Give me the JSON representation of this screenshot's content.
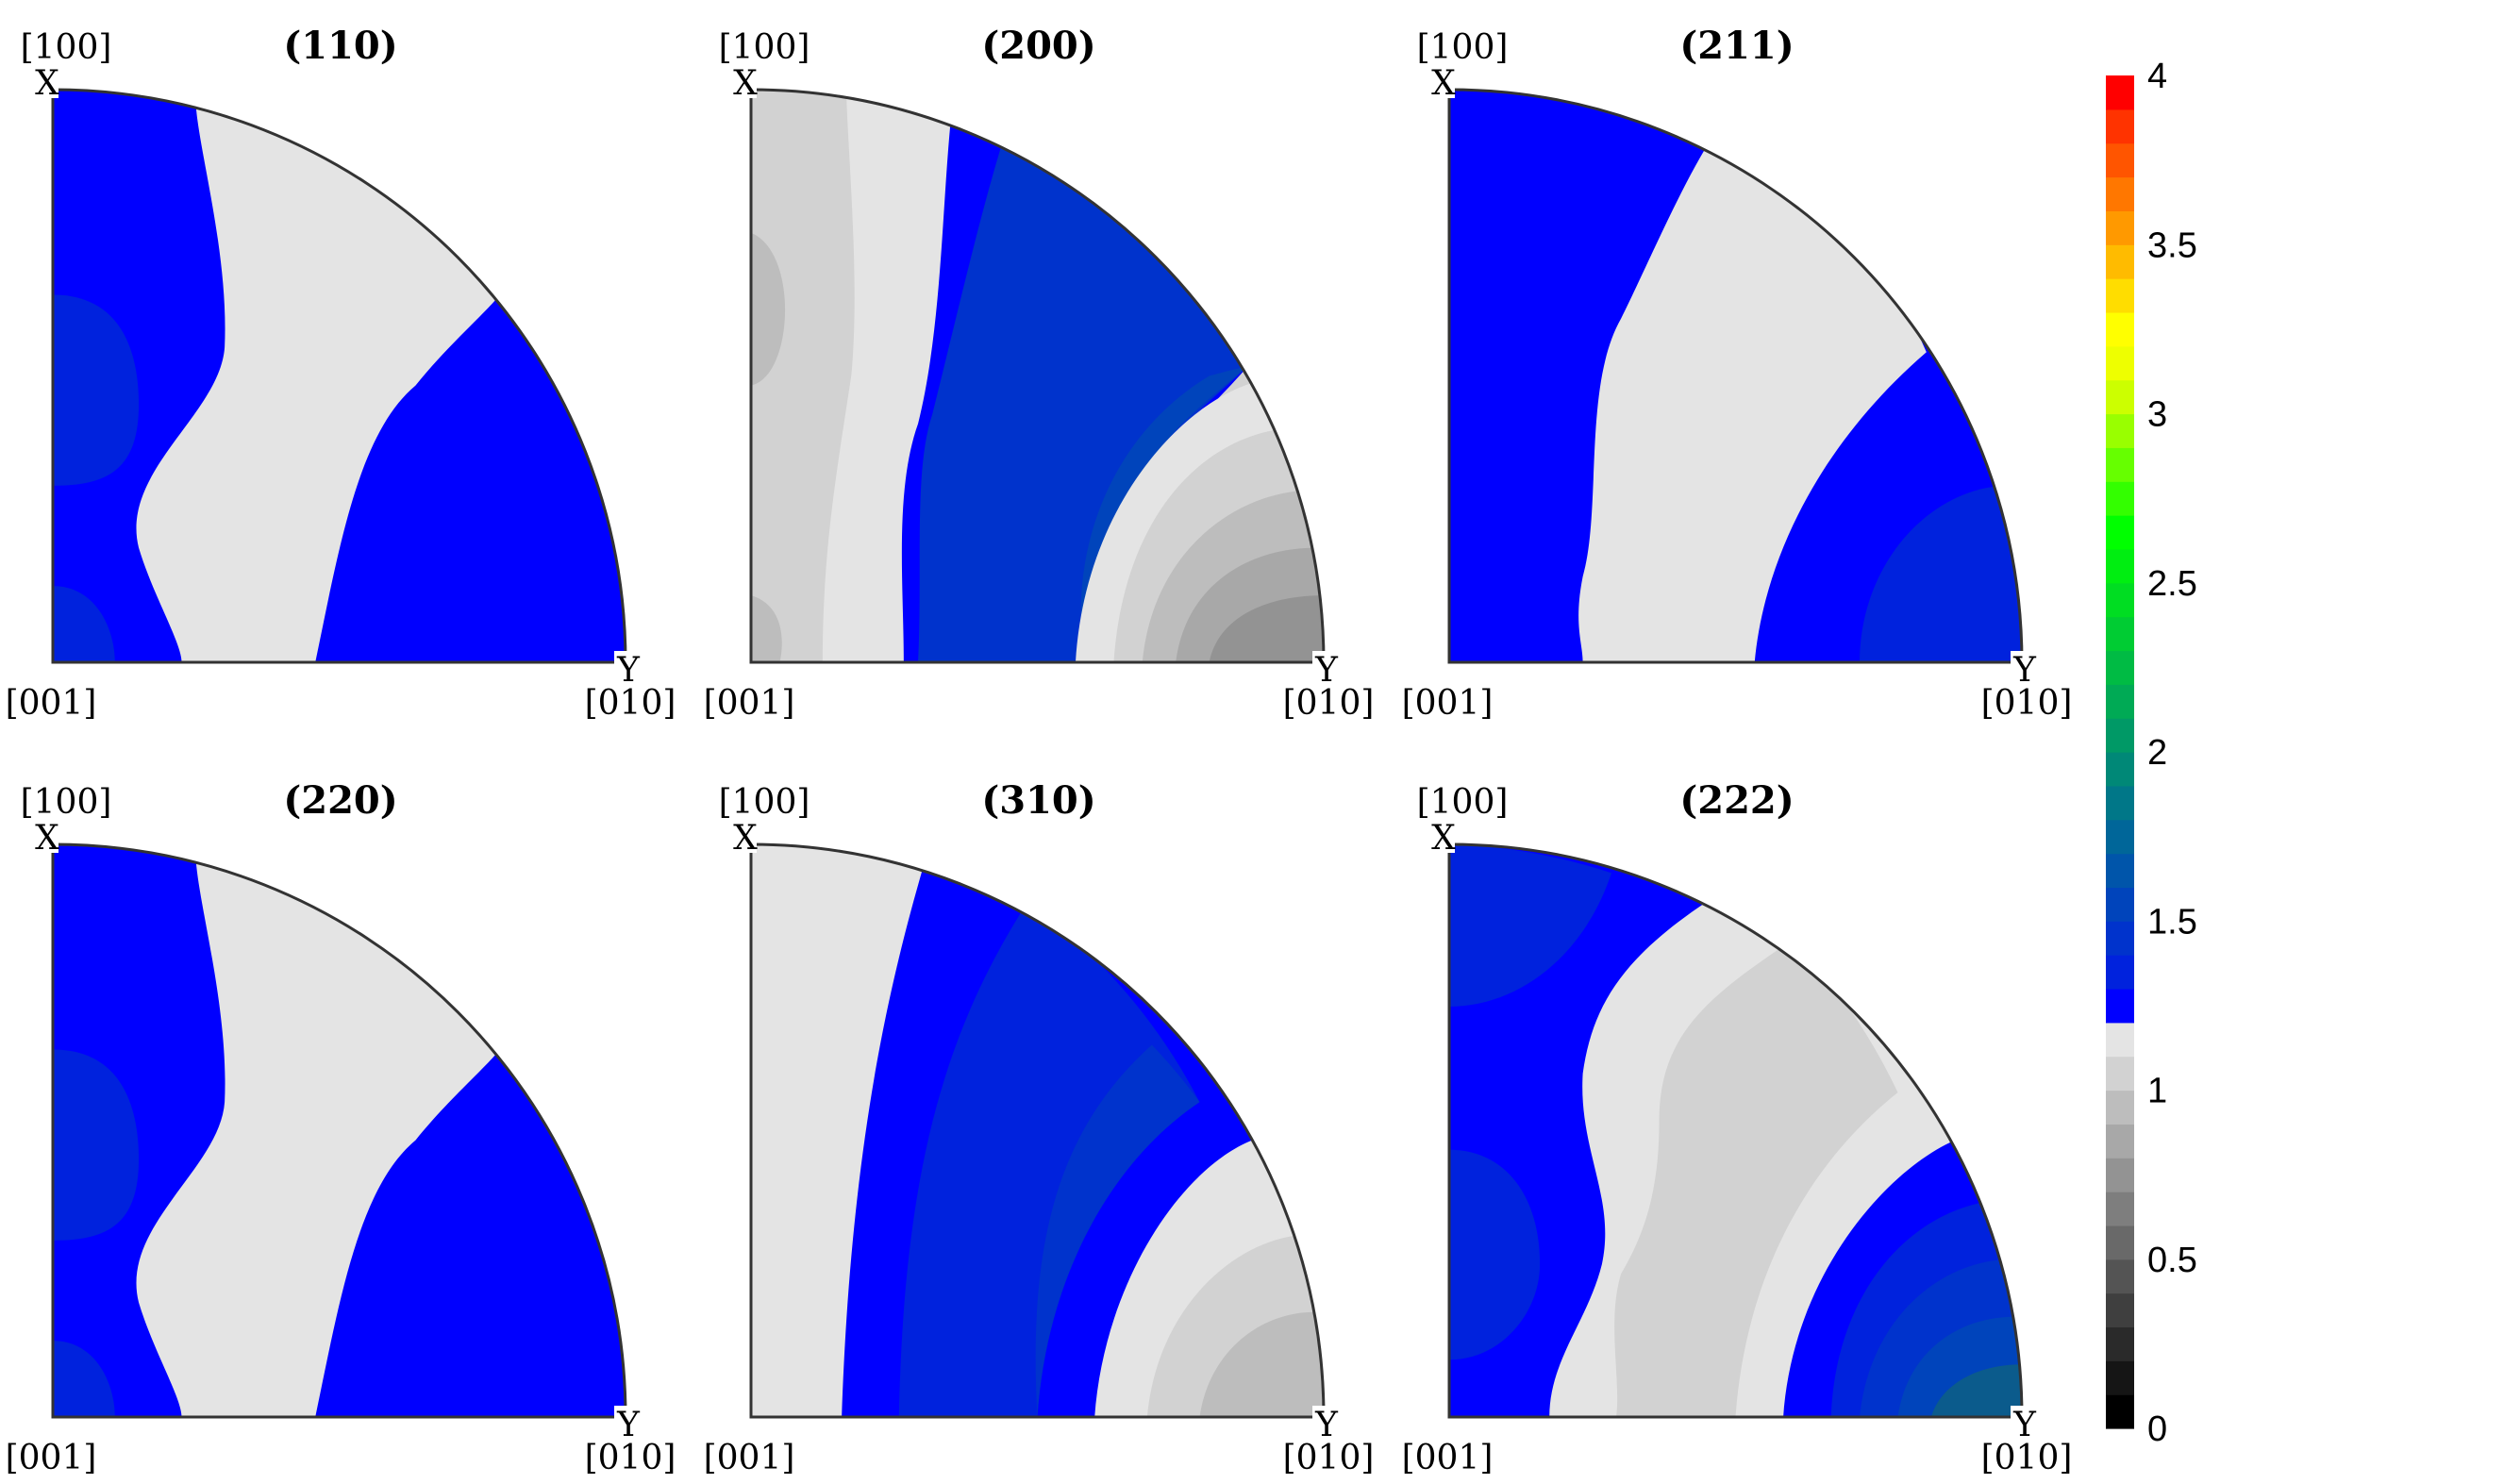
{
  "chart_data": [
    {
      "type": "heatmap",
      "title": "(110)",
      "corner_labels": {
        "top_pole": "[100]",
        "top_axis": "X",
        "origin": "[001]",
        "right_pole": "[010]",
        "right_axis": "Y"
      }
    },
    {
      "type": "heatmap",
      "title": "(200)",
      "corner_labels": {
        "top_pole": "[100]",
        "top_axis": "X",
        "origin": "[001]",
        "right_pole": "[010]",
        "right_axis": "Y"
      }
    },
    {
      "type": "heatmap",
      "title": "(211)",
      "corner_labels": {
        "top_pole": "[100]",
        "top_axis": "X",
        "origin": "[001]",
        "right_pole": "[010]",
        "right_axis": "Y"
      }
    },
    {
      "type": "heatmap",
      "title": "(220)",
      "corner_labels": {
        "top_pole": "[100]",
        "top_axis": "X",
        "origin": "[001]",
        "right_pole": "[010]",
        "right_axis": "Y"
      }
    },
    {
      "type": "heatmap",
      "title": "(310)",
      "corner_labels": {
        "top_pole": "[100]",
        "top_axis": "X",
        "origin": "[001]",
        "right_pole": "[010]",
        "right_axis": "Y"
      }
    },
    {
      "type": "heatmap",
      "title": "(222)",
      "corner_labels": {
        "top_pole": "[100]",
        "top_axis": "X",
        "origin": "[001]",
        "right_pole": "[010]",
        "right_axis": "Y"
      }
    }
  ],
  "colorbar": {
    "min": 0,
    "max": 4,
    "ticks": [
      {
        "value": 0,
        "label": "0"
      },
      {
        "value": 0.5,
        "label": "0.5"
      },
      {
        "value": 1,
        "label": "1"
      },
      {
        "value": 1.5,
        "label": "1.5"
      },
      {
        "value": 2,
        "label": "2"
      },
      {
        "value": 2.5,
        "label": "2.5"
      },
      {
        "value": 3,
        "label": "3"
      },
      {
        "value": 3.5,
        "label": "3.5"
      },
      {
        "value": 4,
        "label": "4"
      }
    ],
    "colors": [
      "#000000",
      "#151515",
      "#2a2a2a",
      "#3f3f3f",
      "#545454",
      "#696969",
      "#7e7e7e",
      "#939393",
      "#a8a8a8",
      "#bdbdbd",
      "#d2d2d2",
      "#e4e4e4",
      "#0000ff",
      "#0022dd",
      "#0033cc",
      "#0044bb",
      "#0055aa",
      "#006699",
      "#007788",
      "#008877",
      "#009966",
      "#00aa55",
      "#00bb44",
      "#00cc33",
      "#00dd22",
      "#00ee11",
      "#00ff00",
      "#33ff00",
      "#66ff00",
      "#99ff00",
      "#ccff00",
      "#eeff00",
      "#ffff00",
      "#ffdd00",
      "#ffbb00",
      "#ff9900",
      "#ff7700",
      "#ff5500",
      "#ff3300",
      "#ff0000"
    ]
  },
  "colors": {
    "blue": "#0000ff",
    "blue2": "#0022dd",
    "blue3": "#0033cc",
    "blue4": "#0044bb",
    "teal": "#0b5b8c",
    "gray1": "#e4e4e4",
    "gray2": "#d2d2d2",
    "gray3": "#bdbdbd",
    "gray4": "#a8a8a8",
    "gray5": "#939393",
    "gray6": "#7e7e7e",
    "outline": "#333333"
  }
}
